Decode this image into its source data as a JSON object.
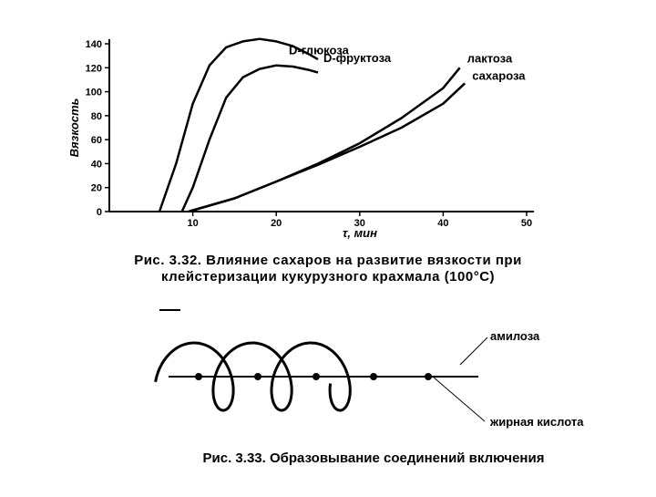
{
  "chart_data": {
    "type": "line",
    "ylabel": "Вязкость",
    "xlabel": "τ, мин",
    "xlim": [
      0,
      50
    ],
    "xticks": [
      10,
      20,
      30,
      40,
      50
    ],
    "ylim": [
      0,
      140
    ],
    "yticks": [
      0,
      20,
      40,
      60,
      80,
      100,
      120,
      140
    ],
    "series": [
      {
        "name": "D-фруктоза",
        "color": "#000000",
        "x": [
          6,
          8,
          10,
          12,
          14,
          16,
          18,
          20,
          22,
          24,
          25
        ],
        "values": [
          0,
          40,
          90,
          122,
          137,
          142,
          144,
          142,
          138,
          131,
          127
        ]
      },
      {
        "name": "D-глюкоза",
        "color": "#000000",
        "x": [
          8.7,
          10,
          12,
          14,
          16,
          18,
          20,
          22,
          24,
          25
        ],
        "values": [
          0,
          20,
          60,
          95,
          112,
          119,
          122,
          121,
          118,
          116
        ]
      },
      {
        "name": "лактоза",
        "color": "#000000",
        "x": [
          9.5,
          15,
          20,
          25,
          30,
          35,
          40,
          42
        ],
        "values": [
          0,
          11,
          25,
          40,
          57,
          78,
          103,
          120
        ]
      },
      {
        "name": "сахароза",
        "color": "#000000",
        "x": [
          9.5,
          15,
          20,
          25,
          30,
          35,
          40,
          42.6
        ],
        "values": [
          0,
          11,
          25,
          39,
          54,
          70,
          90,
          107
        ]
      }
    ]
  },
  "figure1": {
    "caption": [
      "Рис. 3.32. Влияние сахаров на развитие вязкости при",
      "клейстеризации кукурузного крахмала (100°С)"
    ]
  },
  "figure2": {
    "labels": [
      "амилоза",
      "жирная кислота"
    ],
    "caption": "Рис. 3.33. Образовывание соединений включения"
  }
}
